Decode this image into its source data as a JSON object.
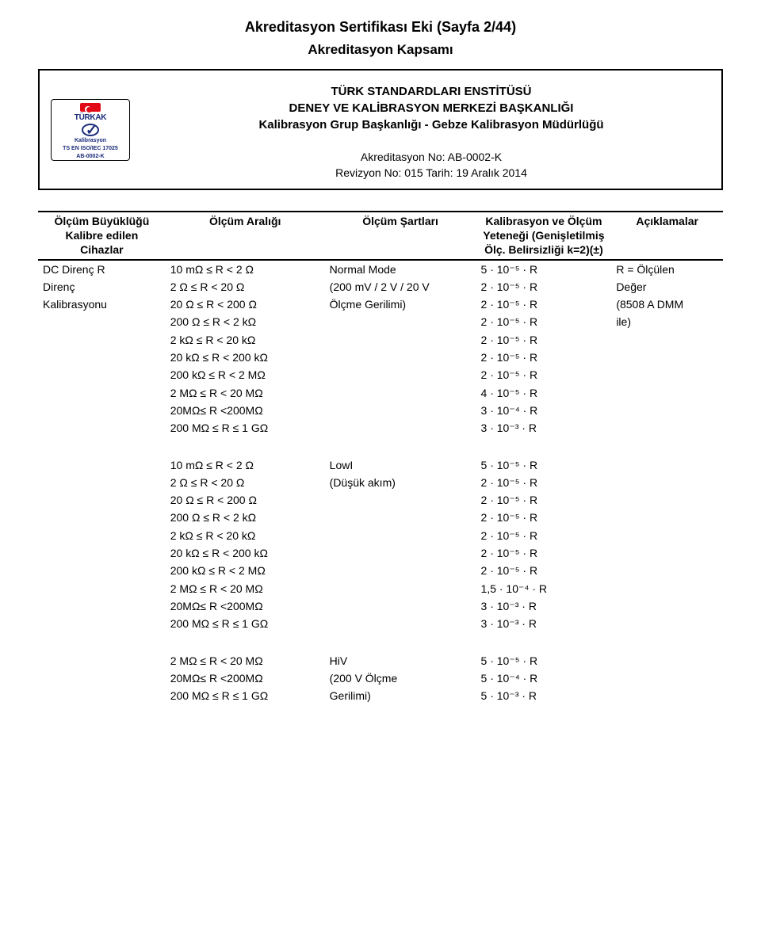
{
  "header": {
    "title": "Akreditasyon Sertifikası Eki (Sayfa 2/44)",
    "subtitle": "Akreditasyon Kapsamı",
    "org_line1": "TÜRK STANDARDLARI ENSTİTÜSÜ",
    "org_line2": "DENEY VE KALİBRASYON MERKEZİ BAŞKANLIĞI",
    "org_line3": "Kalibrasyon Grup Başkanlığı - Gebze Kalibrasyon Müdürlüğü",
    "ak_no": "Akreditasyon No: AB-0002-K",
    "rev": "Revizyon No: 015 Tarih: 19 Aralık 2014",
    "logo": {
      "brand": "TÜRKAK",
      "caption1": "Kalibrasyon",
      "caption2": "TS EN ISO/IEC 17025",
      "caption3": "AB-0002-K"
    }
  },
  "columns": {
    "c1": "Ölçüm Büyüklüğü\nKalibre edilen\nCihazlar",
    "c2": "Ölçüm Aralığı",
    "c3": "Ölçüm Şartları",
    "c4": "Kalibrasyon ve Ölçüm\nYeteneği (Genişletilmiş\nÖlç. Belirsizliği k=2)(±)",
    "c5": "Açıklamalar"
  },
  "block1": {
    "left": [
      "DC Direnç R",
      "Direnç",
      "Kalibrasyonu"
    ],
    "ranges": [
      "10 mΩ ≤ R < 2 Ω",
      "2 Ω ≤ R < 20 Ω",
      "20 Ω ≤ R < 200 Ω",
      "200 Ω ≤ R < 2 kΩ",
      "2 kΩ ≤ R < 20 kΩ",
      "20 kΩ ≤ R < 200 kΩ",
      "200 kΩ ≤ R < 2 MΩ",
      "2 MΩ ≤ R < 20 MΩ",
      "20MΩ≤ R <200MΩ",
      "200 MΩ ≤ R ≤ 1 GΩ"
    ],
    "cond": [
      "Normal Mode",
      "(200 mV / 2 V / 20 V",
      "Ölçme Gerilimi)"
    ],
    "unc": [
      "5 · 10⁻⁵ · R",
      "2 · 10⁻⁵ · R",
      "2 · 10⁻⁵ · R",
      "2 · 10⁻⁵ · R",
      "2 · 10⁻⁵ · R",
      "2 · 10⁻⁵ · R",
      "2 · 10⁻⁵ · R",
      "4 · 10⁻⁵ · R",
      "3 · 10⁻⁴ · R",
      "3 · 10⁻³ · R"
    ],
    "notes": [
      "R = Ölçülen",
      "Değer",
      "(8508 A DMM",
      "ile)"
    ]
  },
  "block2": {
    "ranges": [
      "10 mΩ ≤ R < 2 Ω",
      "2 Ω ≤ R < 20 Ω",
      "20 Ω ≤ R < 200 Ω",
      "200 Ω ≤ R < 2 kΩ",
      "2 kΩ ≤ R < 20 kΩ",
      "20 kΩ ≤ R < 200 kΩ",
      "200 kΩ ≤ R < 2 MΩ",
      "2 MΩ ≤ R < 20 MΩ",
      "20MΩ≤ R <200MΩ",
      "200 MΩ ≤ R ≤ 1 GΩ"
    ],
    "cond": [
      "LowI",
      "(Düşük akım)"
    ],
    "unc": [
      "5 · 10⁻⁵ · R",
      "2 · 10⁻⁵ · R",
      "2 · 10⁻⁵ · R",
      "2 · 10⁻⁵ · R",
      "2 · 10⁻⁵ · R",
      "2 · 10⁻⁵ · R",
      "2 · 10⁻⁵ · R",
      "1,5 · 10⁻⁴ · R",
      "3 · 10⁻³ · R",
      "3 · 10⁻³ · R"
    ]
  },
  "block3": {
    "ranges": [
      "2 MΩ ≤ R < 20 MΩ",
      "20MΩ≤ R <200MΩ",
      "200 MΩ ≤ R ≤ 1 GΩ"
    ],
    "cond": [
      "HiV",
      "(200 V Ölçme",
      "Gerilimi)"
    ],
    "unc": [
      "5 · 10⁻⁵ · R",
      "5 · 10⁻⁴ · R",
      "5 · 10⁻³ · R"
    ]
  }
}
